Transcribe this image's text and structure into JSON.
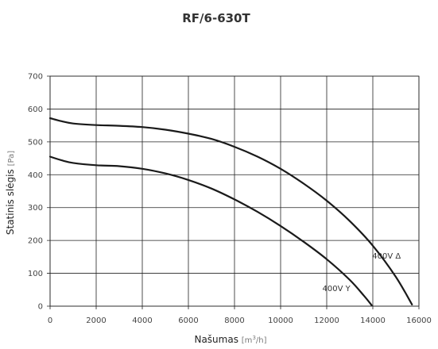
{
  "chart_data": {
    "type": "line",
    "title": "RF/6-630T",
    "xlabel": {
      "text": "Našumas",
      "unit_prefix": "[m",
      "unit_sup": "3",
      "unit_suffix": "/h]"
    },
    "ylabel": {
      "text": "Statinis slėgis",
      "unit": "[Pa]"
    },
    "xlim": [
      0,
      16000
    ],
    "ylim": [
      0,
      700
    ],
    "xticks": [
      0,
      2000,
      4000,
      6000,
      8000,
      10000,
      12000,
      14000,
      16000
    ],
    "yticks": [
      0,
      100,
      200,
      300,
      400,
      500,
      600,
      700
    ],
    "grid": true,
    "series": [
      {
        "name": "400V Δ",
        "x": [
          0,
          500,
          1000,
          2000,
          3000,
          4000,
          5000,
          6000,
          7000,
          8000,
          9000,
          10000,
          11000,
          12000,
          13000,
          14000,
          15000,
          15700
        ],
        "y": [
          572,
          563,
          556,
          551,
          549,
          545,
          537,
          525,
          509,
          485,
          455,
          418,
          373,
          321,
          259,
          184,
          89,
          5
        ]
      },
      {
        "name": "400V Y",
        "x": [
          0,
          500,
          1000,
          2000,
          3000,
          4000,
          5000,
          6000,
          7000,
          8000,
          9000,
          10000,
          11000,
          12000,
          13000,
          13600,
          13950
        ],
        "y": [
          455,
          444,
          436,
          429,
          426,
          418,
          404,
          384,
          358,
          325,
          287,
          244,
          196,
          143,
          80,
          33,
          3
        ]
      }
    ]
  }
}
